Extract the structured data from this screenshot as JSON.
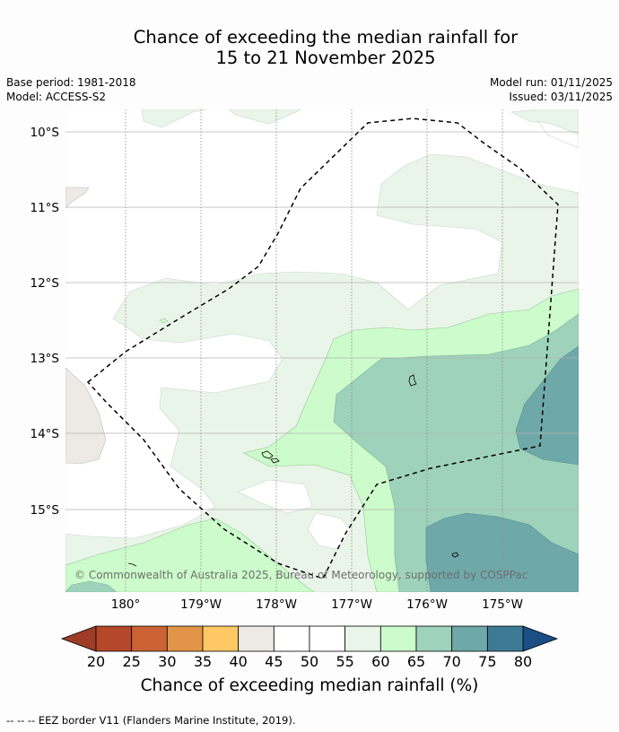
{
  "title": {
    "line1": "Chance of exceeding the median rainfall for",
    "line2": "15 to 21 November 2025"
  },
  "meta": {
    "base_period": "Base period: 1981-2018",
    "model": "Model: ACCESS-S2",
    "model_run": "Model run: 01/11/2025",
    "issued": "Issued: 03/11/2025"
  },
  "map": {
    "lat_labels": [
      "10°S",
      "11°S",
      "12°S",
      "13°S",
      "14°S",
      "15°S"
    ],
    "lon_labels": [
      "180°",
      "179°W",
      "178°W",
      "177°W",
      "176°W",
      "175°W"
    ],
    "credit": "© Commonwealth of Australia 2025, Bureau of Meteorology, supported by COSPPac"
  },
  "colorbar": {
    "labels": [
      "20",
      "25",
      "30",
      "35",
      "40",
      "45",
      "50",
      "55",
      "60",
      "65",
      "70",
      "75",
      "80"
    ],
    "colors": [
      "#b5472a",
      "#cb6334",
      "#e29549",
      "#fec964",
      "#ede9e4",
      "#ffffff",
      "#ffffff",
      "#eaf5ea",
      "#ccfccb",
      "#9ed2bb",
      "#6fa8a9",
      "#3d7a96"
    ],
    "low_extend_color": "#9e3c28",
    "high_extend_color": "#1a4e84",
    "title": "Chance of exceeding median rainfall (%)"
  },
  "footnote": "--  --  -- EEZ border V11 (Flanders Marine Institute, 2019)."
}
